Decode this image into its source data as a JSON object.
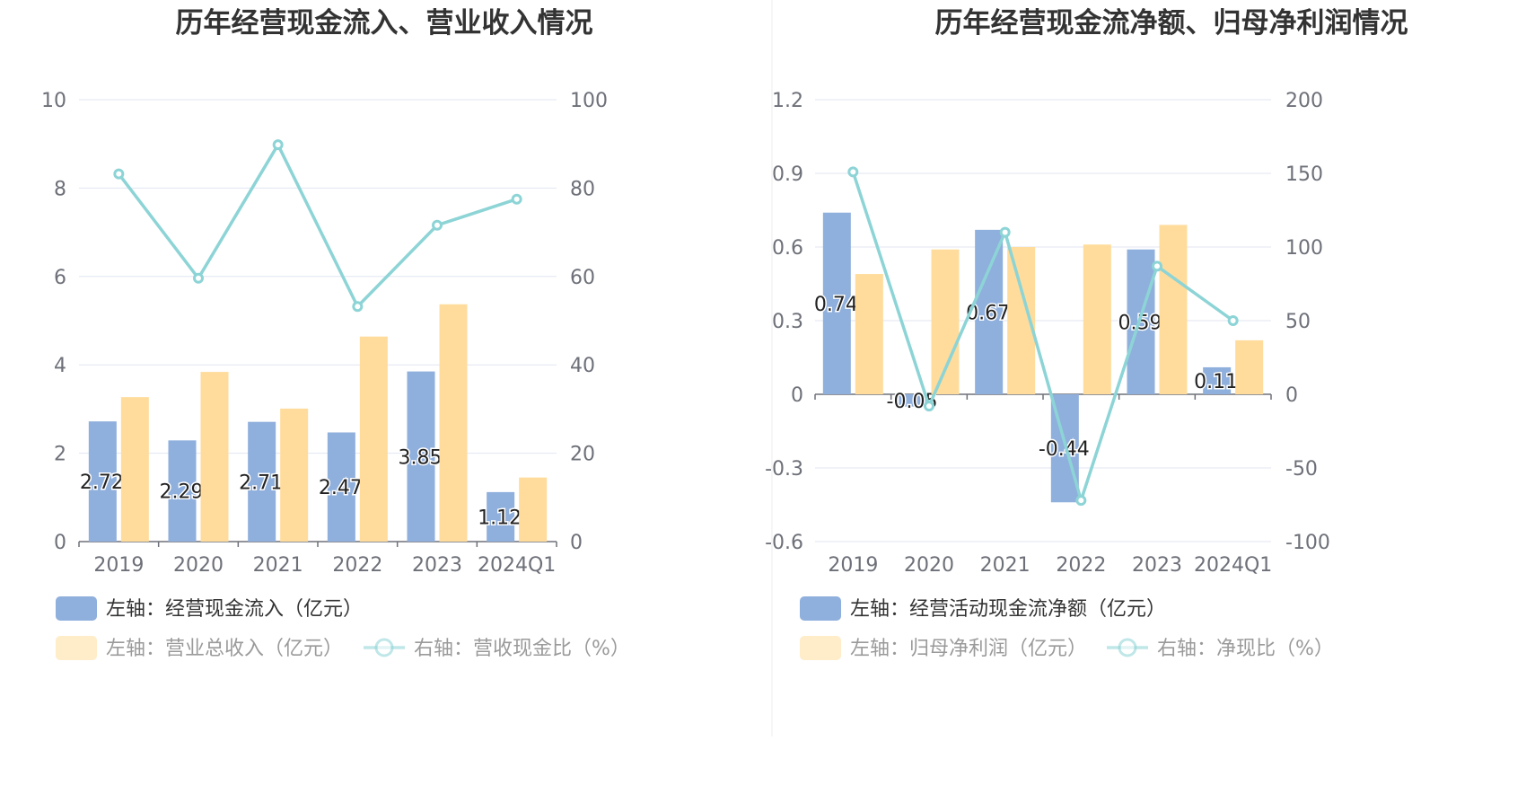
{
  "charts": [
    {
      "type": "bar+line",
      "title": "历年经营现金流入、营业收入情况",
      "categories": [
        "2019",
        "2020",
        "2021",
        "2022",
        "2023",
        "2024Q1"
      ],
      "left_axis": {
        "min": 0,
        "max": 10,
        "ticks": [
          "0",
          "2",
          "4",
          "6",
          "8",
          "10"
        ]
      },
      "right_axis": {
        "min": 0,
        "max": 100,
        "ticks": [
          "0",
          "20",
          "40",
          "60",
          "80",
          "100"
        ]
      },
      "series": [
        {
          "name": "左轴：经营现金流入（亿元）",
          "kind": "bar",
          "axis": "left",
          "color": "#8fafdc",
          "values": [
            2.72,
            2.29,
            2.71,
            2.47,
            3.85,
            1.12
          ],
          "labels": [
            "2.72",
            "2.29",
            "2.71",
            "2.47",
            "3.85",
            "1.12"
          ]
        },
        {
          "name": "左轴：营业总收入（亿元）",
          "kind": "bar",
          "axis": "left",
          "color": "#ffdc9c",
          "values": [
            3.27,
            3.84,
            3.01,
            4.64,
            5.37,
            1.45
          ]
        },
        {
          "name": "右轴：营收现金比（%）",
          "kind": "line",
          "axis": "right",
          "color": "#8dd4d6",
          "values": [
            83.2,
            59.6,
            89.8,
            53.2,
            71.6,
            77.5
          ]
        }
      ]
    },
    {
      "type": "bar+line",
      "title": "历年经营现金流净额、归母净利润情况",
      "categories": [
        "2019",
        "2020",
        "2021",
        "2022",
        "2023",
        "2024Q1"
      ],
      "left_axis": {
        "min": -0.6,
        "max": 1.2,
        "ticks": [
          "-0.6",
          "-0.3",
          "0",
          "0.3",
          "0.6",
          "0.9",
          "1.2"
        ]
      },
      "right_axis": {
        "min": -100,
        "max": 200,
        "ticks": [
          "-100",
          "-50",
          "0",
          "50",
          "100",
          "150",
          "200"
        ]
      },
      "series": [
        {
          "name": "左轴：经营活动现金流净额（亿元）",
          "kind": "bar",
          "axis": "left",
          "color": "#8fafdc",
          "values": [
            0.74,
            -0.05,
            0.67,
            -0.44,
            0.59,
            0.11
          ],
          "labels": [
            "0.74",
            "-0.05",
            "0.67",
            "-0.44",
            "0.59",
            "0.11"
          ]
        },
        {
          "name": "左轴：归母净利润（亿元）",
          "kind": "bar",
          "axis": "left",
          "color": "#ffdc9c",
          "values": [
            0.49,
            0.59,
            0.6,
            0.61,
            0.69,
            0.22
          ]
        },
        {
          "name": "右轴：净现比（%）",
          "kind": "line",
          "axis": "right",
          "color": "#8dd4d6",
          "values": [
            151,
            -8,
            110,
            -72,
            87,
            50
          ]
        }
      ]
    }
  ]
}
